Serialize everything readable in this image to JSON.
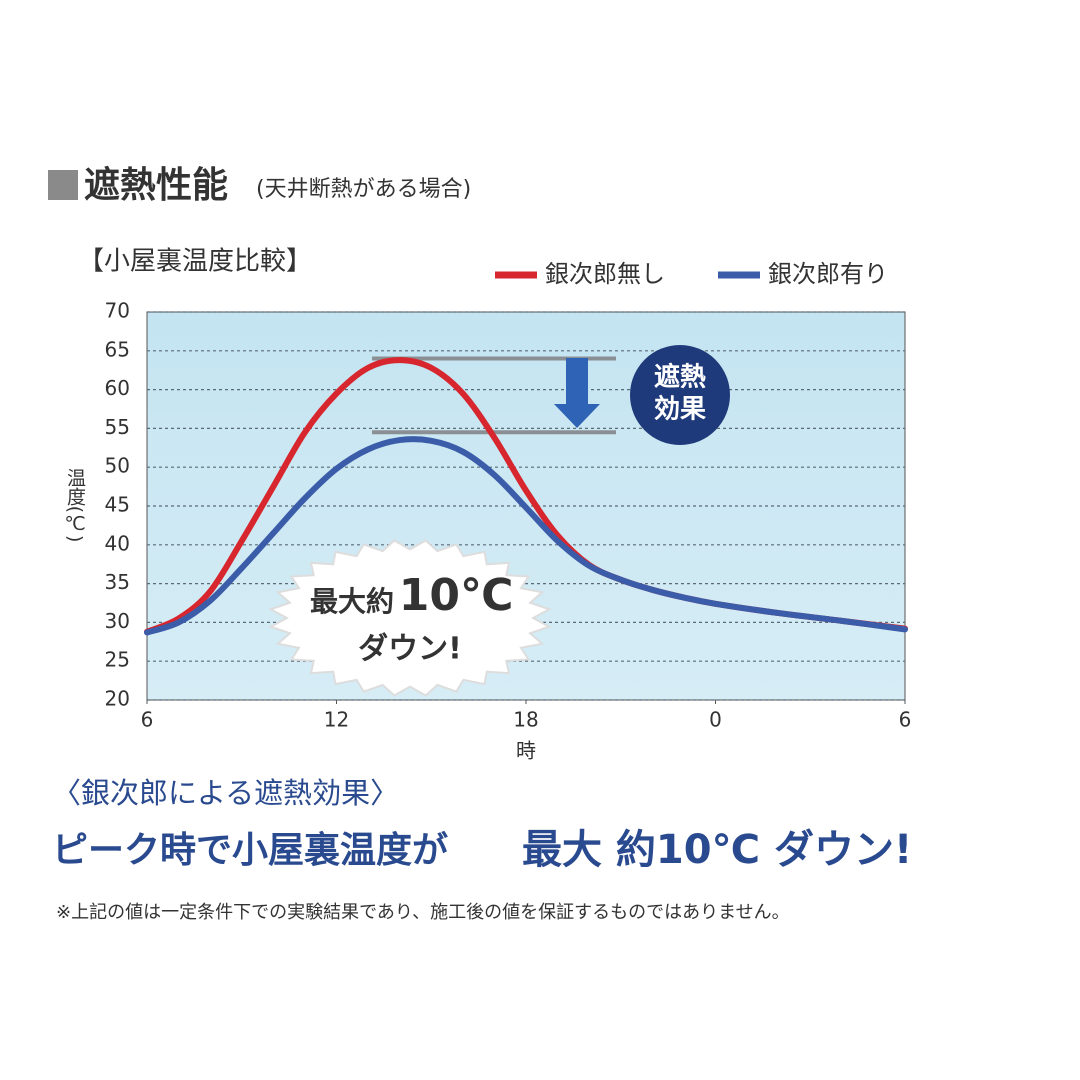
{
  "header": {
    "title": "遮熱性能",
    "subtitle": "(天井断熱がある場合)"
  },
  "chart_data": {
    "type": "line",
    "title": "【小屋裏温度比較】",
    "x_label": "時",
    "y_label": "温度(℃)",
    "x": [
      6,
      7,
      8,
      9,
      10,
      11,
      12,
      13,
      14,
      15,
      16,
      17,
      18,
      19,
      20,
      21,
      22,
      23,
      24,
      26,
      28,
      30
    ],
    "series": [
      {
        "name": "銀次郎無し",
        "color": "#d7262e",
        "values": [
          28.8,
          30.5,
          34,
          40.5,
          47.5,
          54.5,
          59.5,
          62.8,
          63.8,
          62.8,
          59.5,
          53.8,
          47,
          41.2,
          37.4,
          35.5,
          34.2,
          33.2,
          32.4,
          31.2,
          30.2,
          29.2
        ]
      },
      {
        "name": "銀次郎有り",
        "color": "#3b5ca8",
        "values": [
          28.7,
          30,
          32.8,
          37,
          41.5,
          46,
          49.8,
          52.3,
          53.5,
          53.4,
          52,
          49,
          44.8,
          40.5,
          37.3,
          35.5,
          34.2,
          33.2,
          32.4,
          31.2,
          30.2,
          29.1
        ]
      }
    ],
    "xlim": [
      6,
      30
    ],
    "xticks": [
      6,
      12,
      18,
      {
        "value": 24,
        "label": "0"
      },
      {
        "value": 30,
        "label": "6"
      }
    ],
    "ylim": [
      20,
      70
    ],
    "yticks": [
      20,
      25,
      30,
      35,
      40,
      45,
      50,
      55,
      60,
      65,
      70
    ],
    "grid": true,
    "reference_lines": [
      64,
      54.5
    ],
    "badge": {
      "line1": "遮熱",
      "line2": "効果"
    },
    "burst": {
      "prefix": "最大約",
      "amount": "10℃",
      "line2": "ダウン!"
    }
  },
  "footer": {
    "heading": "〈銀次郎による遮熱効果〉",
    "claim_a": "ピーク時で小屋裏温度が",
    "claim_b": "最大 約10℃ ダウン!",
    "note": "※上記の値は一定条件下での実験結果であり、施工後の値を保証するものではありません。"
  }
}
